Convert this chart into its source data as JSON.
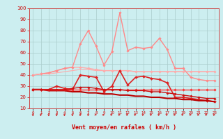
{
  "title": "",
  "xlabel": "Vent moyen/en rafales ( km/h )",
  "ylabel": "",
  "bg_color": "#cceef0",
  "grid_color": "#aacccc",
  "x": [
    0,
    1,
    2,
    3,
    4,
    5,
    6,
    7,
    8,
    9,
    10,
    11,
    12,
    13,
    14,
    15,
    16,
    17,
    18,
    19,
    20,
    21,
    22,
    23
  ],
  "series": [
    {
      "name": "flat_pink_top",
      "color": "#ffaaaa",
      "lw": 1.0,
      "marker": "D",
      "ms": 1.8,
      "y": [
        40,
        41,
        42,
        44,
        46,
        47,
        47,
        46,
        45,
        44,
        44,
        44,
        44,
        43,
        43,
        43,
        43,
        43,
        43,
        43,
        43,
        43,
        43,
        43
      ]
    },
    {
      "name": "pink_peak",
      "color": "#ff8888",
      "lw": 1.0,
      "marker": "D",
      "ms": 1.8,
      "y": [
        40,
        41,
        42,
        44,
        46,
        47,
        68,
        80,
        66,
        49,
        61,
        96,
        62,
        65,
        64,
        65,
        73,
        63,
        46,
        46,
        38,
        36,
        35,
        35
      ]
    },
    {
      "name": "flat_pink_lower",
      "color": "#ffaaaa",
      "lw": 0.8,
      "marker": null,
      "ms": 0,
      "y": [
        40,
        41,
        41,
        42,
        43,
        44,
        45,
        45,
        44,
        44,
        44,
        44,
        44,
        43,
        43,
        43,
        43,
        43,
        43,
        43,
        43,
        43,
        43,
        43
      ]
    },
    {
      "name": "medium_red_zigzag",
      "color": "#dd2222",
      "lw": 1.2,
      "marker": "D",
      "ms": 2.0,
      "y": [
        27,
        27,
        27,
        30,
        28,
        27,
        40,
        39,
        38,
        25,
        30,
        44,
        31,
        38,
        39,
        37,
        36,
        33,
        20,
        20,
        19,
        18,
        17,
        16
      ]
    },
    {
      "name": "declining_dark",
      "color": "#bb0000",
      "lw": 1.5,
      "marker": null,
      "ms": 0,
      "y": [
        27,
        27,
        26,
        26,
        26,
        25,
        25,
        24,
        24,
        23,
        23,
        22,
        22,
        21,
        21,
        20,
        20,
        19,
        19,
        18,
        18,
        17,
        17,
        16
      ]
    },
    {
      "name": "flat_red",
      "color": "#ff3333",
      "lw": 1.0,
      "marker": "D",
      "ms": 1.8,
      "y": [
        27,
        27,
        27,
        27,
        27,
        27,
        27,
        27,
        27,
        27,
        27,
        27,
        27,
        27,
        27,
        27,
        27,
        27,
        27,
        27,
        27,
        27,
        27,
        27
      ]
    },
    {
      "name": "slight_decline",
      "color": "#cc1111",
      "lw": 1.0,
      "marker": "D",
      "ms": 1.8,
      "y": [
        27,
        27,
        27,
        27,
        27,
        28,
        29,
        29,
        28,
        27,
        27,
        27,
        26,
        26,
        26,
        25,
        25,
        24,
        23,
        22,
        21,
        20,
        19,
        19
      ]
    }
  ],
  "arrow_angles_deg": [
    180,
    200,
    180,
    180,
    200,
    190,
    200,
    200,
    90,
    80,
    80,
    80,
    80,
    80,
    80,
    80,
    80,
    80,
    80,
    80,
    80,
    80,
    80,
    80
  ],
  "ylim": [
    10,
    100
  ],
  "xlim": [
    -0.5,
    23.5
  ],
  "yticks": [
    10,
    20,
    30,
    40,
    50,
    60,
    70,
    80,
    90,
    100
  ],
  "xticks": [
    0,
    1,
    2,
    3,
    4,
    5,
    6,
    7,
    8,
    9,
    10,
    11,
    12,
    13,
    14,
    15,
    16,
    17,
    18,
    19,
    20,
    21,
    22,
    23
  ]
}
